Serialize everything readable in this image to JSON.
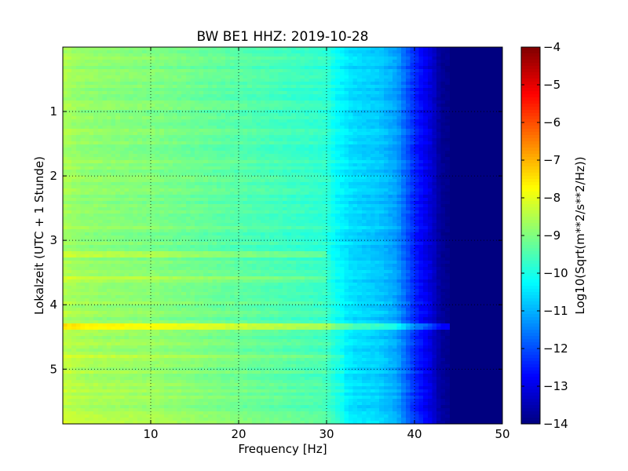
{
  "chart_data": {
    "type": "heatmap",
    "title": "BW BE1 HHZ: 2019-10-28",
    "xlabel": "Frequency [Hz]",
    "ylabel": "Lokalzeit (UTC + 1 Stunde)",
    "xlim": [
      0,
      50
    ],
    "ylim": [
      5.85,
      0
    ],
    "x_ticks": [
      10,
      20,
      30,
      40,
      50
    ],
    "x_tick_labels": [
      "10",
      "20",
      "30",
      "40",
      "50"
    ],
    "y_ticks": [
      1,
      2,
      3,
      4,
      5
    ],
    "y_tick_labels": [
      "1",
      "2",
      "3",
      "4",
      "5"
    ],
    "grid": true,
    "colormap": "jet",
    "colorbar": {
      "label": "Log10(Sqrt(m**2/s**2/Hz))",
      "range": [
        -14,
        -4
      ],
      "ticks": [
        -4,
        -5,
        -6,
        -7,
        -8,
        -9,
        -10,
        -11,
        -12,
        -13,
        -14
      ],
      "tick_labels": [
        "−4",
        "−5",
        "−6",
        "−7",
        "−8",
        "−9",
        "−10",
        "−11",
        "−12",
        "−13",
        "−14"
      ]
    },
    "profile": {
      "frequency": [
        0,
        2,
        5,
        10,
        15,
        20,
        25,
        30,
        31,
        33,
        36,
        38,
        40,
        42,
        43,
        45,
        50
      ],
      "value": [
        -8.6,
        -8.8,
        -8.9,
        -9.0,
        -9.2,
        -9.4,
        -9.6,
        -9.8,
        -10.2,
        -10.6,
        -10.8,
        -11.2,
        -12.4,
        -13.2,
        -13.8,
        -14.0,
        -14.0
      ]
    },
    "highlight_lines": [
      {
        "time": 4.33,
        "offset": 1.0,
        "fmax": 44
      },
      {
        "time": 3.22,
        "offset": 0.5,
        "fmax": 30
      },
      {
        "time": 3.62,
        "offset": 0.4,
        "fmax": 30
      },
      {
        "time": 4.8,
        "offset": 0.3,
        "fmax": 32
      }
    ]
  }
}
